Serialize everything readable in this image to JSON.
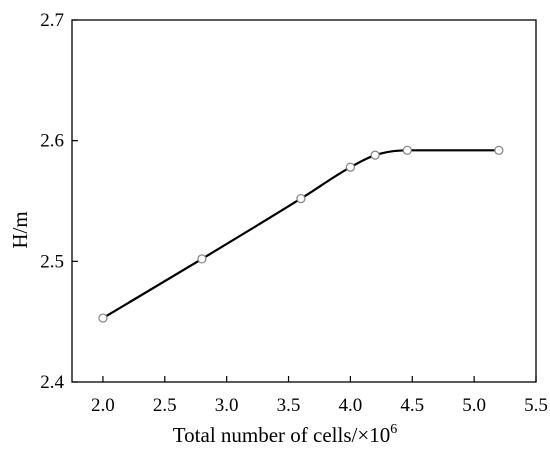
{
  "chart_data": {
    "type": "line",
    "title": "",
    "xlabel": "Total number of cells/×10",
    "xlabel_superscript": "6",
    "ylabel": "H/m",
    "xlim": [
      1.75,
      5.5
    ],
    "ylim": [
      2.4,
      2.7
    ],
    "x_ticks": [
      2.0,
      2.5,
      3.0,
      3.5,
      4.0,
      4.5,
      5.0,
      5.5
    ],
    "x_tick_labels": [
      "2.0",
      "2.5",
      "3.0",
      "3.5",
      "4.0",
      "4.5",
      "5.0",
      "5.5"
    ],
    "y_ticks": [
      2.4,
      2.5,
      2.6,
      2.7
    ],
    "y_tick_labels": [
      "2.4",
      "2.5",
      "2.6",
      "2.7"
    ],
    "grid": false,
    "legend": "none",
    "series": [
      {
        "x": [
          2.0,
          2.8,
          3.6,
          4.0,
          4.2,
          4.46,
          5.2
        ],
        "y": [
          2.453,
          2.502,
          2.552,
          2.578,
          2.588,
          2.592,
          2.592
        ],
        "line_color": "#000000",
        "marker": "open-circle",
        "marker_fill": "#ffffff",
        "marker_stroke": "#808080"
      }
    ]
  }
}
